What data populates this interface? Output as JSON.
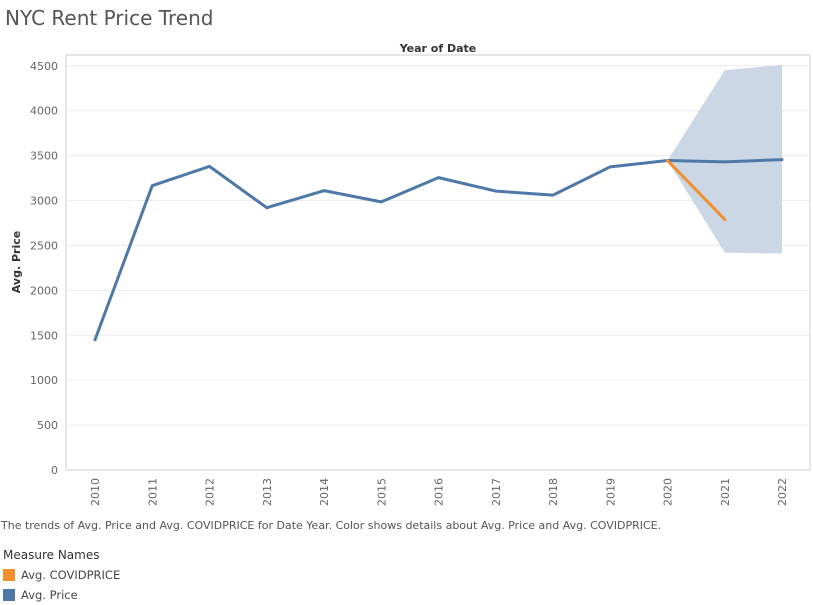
{
  "title": "NYC Rent Price Trend",
  "caption": "The trends of Avg. Price and Avg. COVIDPRICE for Date Year.  Color shows details about Avg. Price and Avg. COVIDPRICE.",
  "legend": {
    "title": "Measure Names",
    "items": [
      {
        "label": "Avg. COVIDPRICE",
        "color": "#f28e2b"
      },
      {
        "label": "Avg. Price",
        "color": "#4e79a7"
      }
    ]
  },
  "chart_data": {
    "type": "line",
    "title": "NYC Rent Price Trend",
    "xlabel": "Year of Date",
    "ylabel": "Avg. Price",
    "categories": [
      "2010",
      "2011",
      "2012",
      "2013",
      "2014",
      "2015",
      "2016",
      "2017",
      "2018",
      "2019",
      "2020",
      "2021",
      "2022"
    ],
    "yticks": [
      0,
      500,
      1000,
      1500,
      2000,
      2500,
      3000,
      3500,
      4000,
      4500
    ],
    "ylim": [
      0,
      4620
    ],
    "grid": true,
    "series": [
      {
        "name": "Avg. Price",
        "color": "#4e79a7",
        "values": [
          1450,
          3165,
          3380,
          2920,
          3110,
          2985,
          3255,
          3105,
          3060,
          3375,
          3445,
          3430,
          3455
        ]
      },
      {
        "name": "Avg. COVIDPRICE",
        "color": "#f28e2b",
        "values": [
          null,
          null,
          null,
          null,
          null,
          null,
          null,
          null,
          null,
          null,
          3445,
          2790,
          null
        ]
      }
    ],
    "forecast_band": {
      "series": "Avg. Price",
      "categories": [
        "2020",
        "2021",
        "2022"
      ],
      "upper": [
        3445,
        4450,
        4510
      ],
      "lower": [
        3445,
        2420,
        2410
      ],
      "color": "#c8d5e3"
    }
  }
}
